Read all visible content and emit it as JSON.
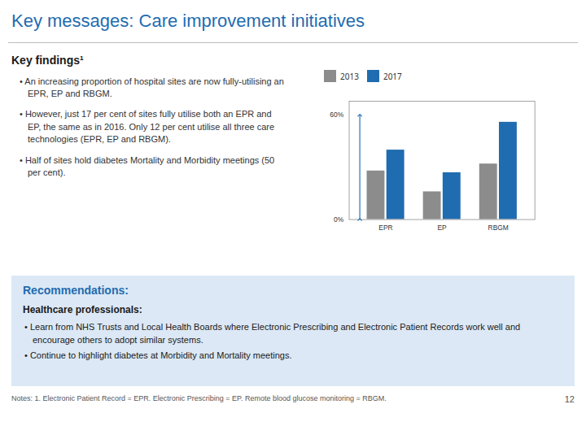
{
  "chart_data": {
    "type": "bar",
    "title": "Key messages: Care improvement initiatives",
    "subtitle": "Key findings¹",
    "annotations": [
      "• An increasing proportion of hospital sites are now fully-utilising an EPR, EP and RBGM.",
      "• However, just 17 per cent of sites fully utilise both an EPR and EP, the same as in 2016. Only 12 per cent utilise all three care technologies (EPR, EP and RBGM).",
      "• Half of sites hold diabetes Mortality and Morbidity meetings (50 per cent).",
      "Recommendations:",
      "Healthcare professionals:",
      "• Learn from NHS Trusts and Local Health Boards where Electronic Prescribing and Electronic Patient Records work well and encourage others to adopt similar systems.",
      "• Continue to highlight diabetes at Morbidity and Mortality meetings.",
      "Notes: 1. Electronic Patient Record = EPR.  Electronic Prescribing = EP.  Remote blood glucose monitoring = RBGM.",
      "12"
    ],
    "categories": [
      "EPR",
      "EP",
      "RBGM"
    ],
    "series": [
      {
        "name": "2013",
        "color": "#8c8c8c",
        "values": [
          0.28,
          0.16,
          0.32
        ]
      },
      {
        "name": "2017",
        "color": "#1f6cb0",
        "values": [
          0.4,
          0.27,
          0.56
        ]
      }
    ],
    "ylim": [
      0,
      0.68
    ],
    "yticks": [
      {
        "value": 0,
        "label": "0%"
      },
      {
        "value": 0.6,
        "label": "60%"
      }
    ],
    "grid": false,
    "legend": "upper left"
  }
}
